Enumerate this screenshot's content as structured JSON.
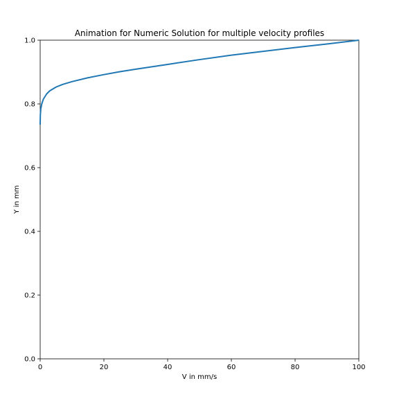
{
  "chart_data": {
    "type": "line",
    "title": "Animation for Numeric Solution for multiple velocity profiles",
    "xlabel": "V in mm/s",
    "ylabel": "Y in mm",
    "xlim": [
      0,
      100
    ],
    "ylim": [
      0,
      1.0
    ],
    "xticks": [
      "0",
      "20",
      "40",
      "60",
      "80",
      "100"
    ],
    "yticks": [
      "0.0",
      "0.2",
      "0.4",
      "0.6",
      "0.8",
      "1.0"
    ],
    "grid": false,
    "legend": "none",
    "line_color": "#1f77b4",
    "series": [
      {
        "x": [
          0,
          0.05,
          0.2,
          0.5,
          1,
          2,
          3,
          5,
          7,
          10,
          15,
          20,
          25,
          30,
          40,
          50,
          60,
          70,
          80,
          90,
          100
        ],
        "y": [
          0.735,
          0.765,
          0.785,
          0.8,
          0.815,
          0.831,
          0.841,
          0.853,
          0.861,
          0.87,
          0.882,
          0.892,
          0.901,
          0.909,
          0.924,
          0.939,
          0.953,
          0.965,
          0.977,
          0.988,
          1.0
        ]
      }
    ]
  }
}
